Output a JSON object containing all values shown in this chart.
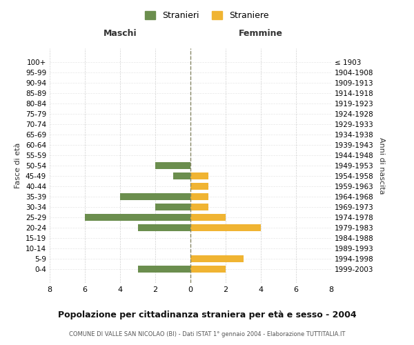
{
  "age_groups": [
    "100+",
    "95-99",
    "90-94",
    "85-89",
    "80-84",
    "75-79",
    "70-74",
    "65-69",
    "60-64",
    "55-59",
    "50-54",
    "45-49",
    "40-44",
    "35-39",
    "30-34",
    "25-29",
    "20-24",
    "15-19",
    "10-14",
    "5-9",
    "0-4"
  ],
  "birth_years": [
    "≤ 1903",
    "1904-1908",
    "1909-1913",
    "1914-1918",
    "1919-1923",
    "1924-1928",
    "1929-1933",
    "1934-1938",
    "1939-1943",
    "1944-1948",
    "1949-1953",
    "1954-1958",
    "1959-1963",
    "1964-1968",
    "1969-1973",
    "1974-1978",
    "1979-1983",
    "1984-1988",
    "1989-1993",
    "1994-1998",
    "1999-2003"
  ],
  "maschi": [
    0,
    0,
    0,
    0,
    0,
    0,
    0,
    0,
    0,
    0,
    2,
    1,
    0,
    4,
    2,
    6,
    3,
    0,
    0,
    0,
    3
  ],
  "femmine": [
    0,
    0,
    0,
    0,
    0,
    0,
    0,
    0,
    0,
    0,
    0,
    1,
    1,
    1,
    1,
    2,
    4,
    0,
    0,
    3,
    2
  ],
  "color_maschi": "#6b8e4e",
  "color_femmine": "#f0b432",
  "title": "Popolazione per cittadinanza straniera per età e sesso - 2004",
  "subtitle": "COMUNE DI VALLE SAN NICOLAO (BI) - Dati ISTAT 1° gennaio 2004 - Elaborazione TUTTITALIA.IT",
  "xlabel_left": "Maschi",
  "xlabel_right": "Femmine",
  "ylabel_left": "Fasce di età",
  "ylabel_right": "Anni di nascita",
  "legend_maschi": "Stranieri",
  "legend_femmine": "Straniere",
  "xlim": 8,
  "background_color": "#ffffff",
  "grid_color": "#cccccc"
}
